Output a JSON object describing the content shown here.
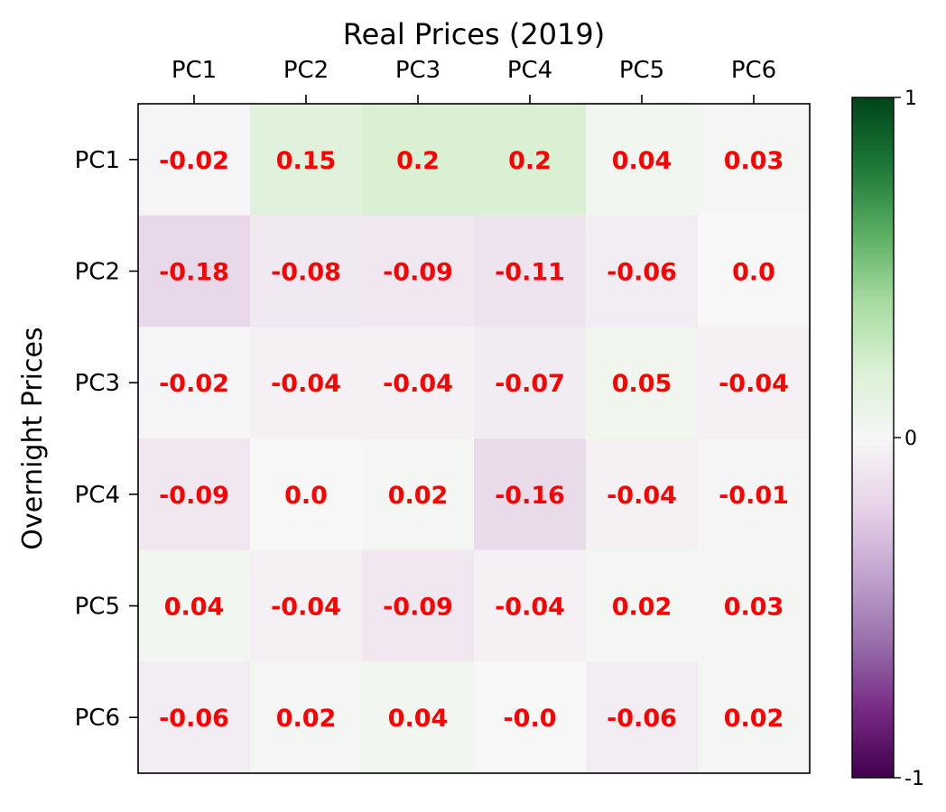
{
  "chart_data": {
    "type": "heatmap",
    "title": "Real Prices (2019)",
    "xlabel": "",
    "ylabel": "Overnight Prices",
    "x_categories": [
      "PC1",
      "PC2",
      "PC3",
      "PC4",
      "PC5",
      "PC6"
    ],
    "y_categories": [
      "PC1",
      "PC2",
      "PC3",
      "PC4",
      "PC5",
      "PC6"
    ],
    "x_axis_position": "top",
    "values": [
      [
        -0.02,
        0.15,
        0.2,
        0.2,
        0.04,
        0.03
      ],
      [
        -0.18,
        -0.08,
        -0.09,
        -0.11,
        -0.06,
        0.0
      ],
      [
        -0.02,
        -0.04,
        -0.04,
        -0.07,
        0.05,
        -0.04
      ],
      [
        -0.09,
        0.0,
        0.02,
        -0.16,
        -0.04,
        -0.01
      ],
      [
        0.04,
        -0.04,
        -0.09,
        -0.04,
        0.02,
        0.03
      ],
      [
        -0.06,
        0.02,
        0.04,
        -0.0,
        -0.06,
        0.02
      ]
    ],
    "cell_labels": [
      [
        "-0.02",
        "0.15",
        "0.2",
        "0.2",
        "0.04",
        "0.03"
      ],
      [
        "-0.18",
        "-0.08",
        "-0.09",
        "-0.11",
        "-0.06",
        "0.0"
      ],
      [
        "-0.02",
        "-0.04",
        "-0.04",
        "-0.07",
        "0.05",
        "-0.04"
      ],
      [
        "-0.09",
        "0.0",
        "0.02",
        "-0.16",
        "-0.04",
        "-0.01"
      ],
      [
        "0.04",
        "-0.04",
        "-0.09",
        "-0.04",
        "0.02",
        "0.03"
      ],
      [
        "-0.06",
        "0.02",
        "0.04",
        "-0.0",
        "-0.06",
        "0.02"
      ]
    ],
    "colormap": "PRGn",
    "vmin": -1,
    "vmax": 1,
    "label_color": "#ff0000",
    "colorbar": {
      "ticks": [
        -1,
        0,
        1
      ],
      "tick_labels": [
        "-1",
        "0",
        "1"
      ]
    },
    "grid": false,
    "legend": "none"
  }
}
